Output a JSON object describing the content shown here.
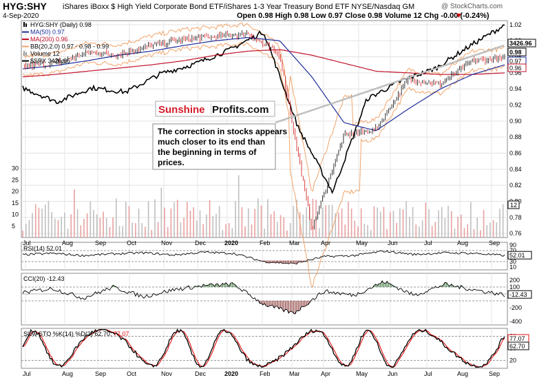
{
  "header": {
    "ticker": "HYG:SHY",
    "description": "iShares iBoxx $ High Yield Corporate Bond ETF/iShares 1-3 Year Treasury Bond ETF  NYSE/Nasdaq GM",
    "date": "4-Sep-2020",
    "ohlc": "Open 0.98  High 0.98  Low 0.97  Close 0.98  Volume 12  Chg -0.00 (-0.24%)",
    "chg_arrow": "▼",
    "credit": "@ StockCharts.com"
  },
  "colors": {
    "price": "#000000",
    "ma50": "#1c2e9c",
    "ma200": "#c0102a",
    "bollinger": "#f2a46a",
    "spx": "#000000",
    "volume_up": "#e8a0a0",
    "volume_down": "#bfbfbf",
    "rsi_fill": "#8b3a3a",
    "cci_fill_pos": "#3f7a3f",
    "cci_fill_neg": "#8b3a3a",
    "sto_k": "#000000",
    "sto_d": "#e01010",
    "trendline": "#9a9a9a"
  },
  "legend": [
    {
      "text": "HYG:SHY (Daily) 0.98",
      "swatch": "candle"
    },
    {
      "text": "MA(50) 0.97",
      "swatch": "ma50"
    },
    {
      "text": "MA(200) 0.96",
      "swatch": "ma200"
    },
    {
      "text": "BB(20,2.0) 0.97 - 0.98 - 0.99",
      "swatch": "bollinger"
    },
    {
      "text": "Volume 12",
      "swatch": "volume"
    },
    {
      "text": "$SPX 3426.96",
      "swatch": "spx"
    }
  ],
  "watermark": {
    "brand_red": "Sunshine",
    "brand_black": "Profits.com"
  },
  "annotation": "The correction in stocks appears much closer to its end than the beginning in terms of prices.",
  "chart_data": [
    {
      "type": "line",
      "title": "HYG:SHY (Daily)",
      "x_labels": [
        "Jul",
        "Aug",
        "Sep",
        "Oct",
        "Nov",
        "Dec",
        "2020",
        "Feb",
        "Mar",
        "Apr",
        "May",
        "Jun",
        "Jul",
        "Aug",
        "Sep"
      ],
      "y_ticks": [
        "1.02",
        "1.00",
        "0.98",
        "0.96",
        "0.94",
        "0.92",
        "0.90",
        "0.88",
        "0.86",
        "0.84",
        "0.82",
        "0.80",
        "0.78",
        "0.76"
      ],
      "ylim": [
        0.755,
        1.025
      ],
      "value_tags": [
        "3426.96",
        "0.98",
        "0.97",
        "0.96"
      ],
      "series": [
        {
          "name": "HYG:SHY",
          "x": [
            "Jul",
            "Aug",
            "Sep",
            "Oct",
            "Nov",
            "Dec",
            "2020",
            "Feb",
            "Mar",
            "Mar-mid",
            "Apr",
            "May",
            "Jun",
            "Jul",
            "Aug",
            "Sep"
          ],
          "values": [
            0.968,
            0.972,
            0.985,
            0.983,
            0.994,
            1.002,
            1.005,
            1.009,
            0.982,
            0.765,
            0.882,
            0.89,
            0.952,
            0.946,
            0.975,
            0.978
          ]
        },
        {
          "name": "MA(50)",
          "values": [
            0.965,
            0.969,
            0.975,
            0.982,
            0.987,
            0.994,
            1.0,
            1.004,
            1.0,
            0.955,
            0.898,
            0.888,
            0.915,
            0.94,
            0.958,
            0.97
          ]
        },
        {
          "name": "MA(200)",
          "values": [
            0.955,
            0.958,
            0.962,
            0.966,
            0.97,
            0.975,
            0.982,
            0.987,
            0.989,
            0.982,
            0.972,
            0.962,
            0.96,
            0.958,
            0.958,
            0.96
          ]
        },
        {
          "name": "$SPX",
          "x": [
            "Jul",
            "Aug",
            "Sep",
            "Oct",
            "Nov",
            "Dec",
            "2020",
            "Feb",
            "Mar",
            "Apr",
            "May",
            "Jun",
            "Jul",
            "Aug",
            "Sep"
          ],
          "values": [
            2980,
            2880,
            2980,
            2950,
            3080,
            3150,
            3250,
            3380,
            2700,
            2237,
            2900,
            3030,
            3120,
            3280,
            3426.96
          ]
        }
      ]
    },
    {
      "type": "bar",
      "title": "Volume",
      "y_ticks": [
        "30",
        "25",
        "20",
        "15",
        "10",
        "5"
      ],
      "ylim": [
        0,
        32
      ],
      "value_tag": "12"
    },
    {
      "type": "line",
      "title": "RSI(14) 52.01",
      "y_ticks": [
        "90",
        "70",
        "50",
        "30",
        "10"
      ],
      "ylim": [
        0,
        100
      ],
      "value_tag": "52.01",
      "values": [
        55,
        60,
        52,
        58,
        62,
        54,
        64,
        60,
        30,
        22,
        48,
        52,
        68,
        56,
        62,
        60,
        52
      ]
    },
    {
      "type": "line",
      "title": "CCI(20) -12.43",
      "y_ticks": [
        "200",
        "100",
        "0",
        "-200",
        "-400"
      ],
      "ylim": [
        -450,
        300
      ],
      "value_tag": "-12.43",
      "values": [
        20,
        80,
        -60,
        100,
        -40,
        60,
        120,
        140,
        -150,
        -280,
        40,
        -20,
        180,
        -20,
        140,
        60,
        -12.43
      ]
    },
    {
      "type": "line",
      "title": "Slow STO %K(14) %D(3) 62.70, 77.07",
      "series_labels": [
        "62.70",
        "77.07"
      ],
      "y_ticks": [
        "80",
        "50",
        "20"
      ],
      "ylim": [
        0,
        100
      ],
      "value_tags": [
        "77.07",
        "62.70"
      ]
    }
  ]
}
